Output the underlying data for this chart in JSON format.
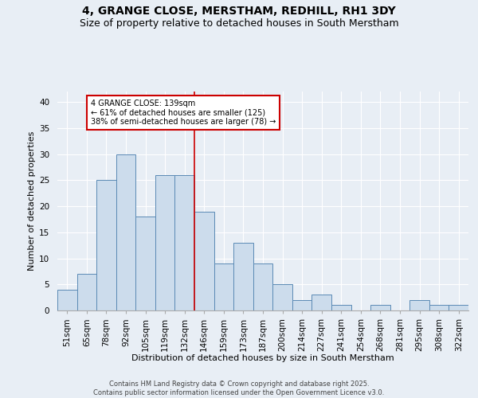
{
  "title": "4, GRANGE CLOSE, MERSTHAM, REDHILL, RH1 3DY",
  "subtitle": "Size of property relative to detached houses in South Merstham",
  "xlabel": "Distribution of detached houses by size in South Merstham",
  "ylabel": "Number of detached properties",
  "categories": [
    "51sqm",
    "65sqm",
    "78sqm",
    "92sqm",
    "105sqm",
    "119sqm",
    "132sqm",
    "146sqm",
    "159sqm",
    "173sqm",
    "187sqm",
    "200sqm",
    "214sqm",
    "227sqm",
    "241sqm",
    "254sqm",
    "268sqm",
    "281sqm",
    "295sqm",
    "308sqm",
    "322sqm"
  ],
  "values": [
    4,
    7,
    25,
    30,
    18,
    26,
    26,
    19,
    9,
    13,
    9,
    5,
    2,
    3,
    1,
    0,
    1,
    0,
    2,
    1,
    1
  ],
  "bar_color": "#ccdcec",
  "bar_edge_color": "#5b8ab5",
  "vline_x": 7.0,
  "vline_color": "#cc0000",
  "annotation_text": "4 GRANGE CLOSE: 139sqm\n← 61% of detached houses are smaller (125)\n38% of semi-detached houses are larger (78) →",
  "annotation_box_color": "#ffffff",
  "annotation_box_edge": "#cc0000",
  "ylim": [
    0,
    42
  ],
  "yticks": [
    0,
    5,
    10,
    15,
    20,
    25,
    30,
    35,
    40
  ],
  "footer": "Contains HM Land Registry data © Crown copyright and database right 2025.\nContains public sector information licensed under the Open Government Licence v3.0.",
  "bg_color": "#e8eef5",
  "plot_bg_color": "#e8eef5",
  "grid_color": "#ffffff",
  "title_fontsize": 10,
  "subtitle_fontsize": 9,
  "label_fontsize": 8,
  "tick_fontsize": 7.5,
  "footer_fontsize": 6,
  "annot_fontsize": 7
}
